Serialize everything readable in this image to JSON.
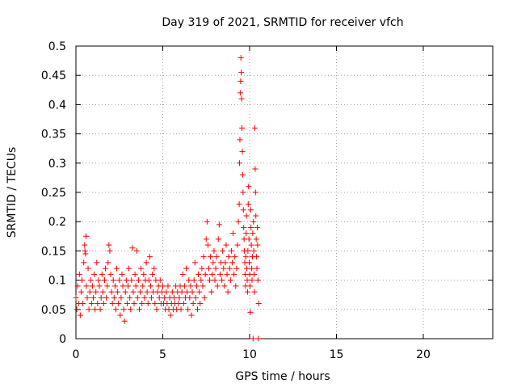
{
  "chart_data": {
    "type": "scatter",
    "title": "Day 319 of 2021, SRMTID for receiver vfch",
    "xlabel": "GPS time / hours",
    "ylabel": "SRMTID / TECUs",
    "xlim": [
      0,
      24
    ],
    "ylim": [
      0,
      0.5
    ],
    "xticks": [
      0,
      5,
      10,
      15,
      20
    ],
    "xtick_labels": [
      "0",
      "5",
      "10",
      "15",
      "20"
    ],
    "yticks": [
      0,
      0.05,
      0.1,
      0.15,
      0.2,
      0.25,
      0.3,
      0.35,
      0.4,
      0.45,
      0.5
    ],
    "ytick_labels": [
      "0",
      "0.05",
      "0.1",
      "0.15",
      "0.2",
      "0.25",
      "0.3",
      "0.35",
      "0.4",
      "0.45",
      "0.5"
    ],
    "grid": true,
    "marker": "+",
    "color": "#ff0000",
    "series": [
      {
        "name": "SRMTID",
        "points": [
          [
            0.0,
            0.07
          ],
          [
            0.05,
            0.05
          ],
          [
            0.1,
            0.09
          ],
          [
            0.15,
            0.06
          ],
          [
            0.2,
            0.11
          ],
          [
            0.25,
            0.04
          ],
          [
            0.3,
            0.08
          ],
          [
            0.35,
            0.1
          ],
          [
            0.4,
            0.06
          ],
          [
            0.45,
            0.13
          ],
          [
            0.5,
            0.16
          ],
          [
            0.52,
            0.15
          ],
          [
            0.55,
            0.145
          ],
          [
            0.58,
            0.175
          ],
          [
            0.6,
            0.09
          ],
          [
            0.65,
            0.07
          ],
          [
            0.7,
            0.12
          ],
          [
            0.75,
            0.05
          ],
          [
            0.8,
            0.08
          ],
          [
            0.85,
            0.1
          ],
          [
            0.9,
            0.06
          ],
          [
            0.95,
            0.09
          ],
          [
            1.0,
            0.07
          ],
          [
            1.05,
            0.11
          ],
          [
            1.1,
            0.05
          ],
          [
            1.15,
            0.08
          ],
          [
            1.2,
            0.13
          ],
          [
            1.25,
            0.06
          ],
          [
            1.3,
            0.1
          ],
          [
            1.35,
            0.09
          ],
          [
            1.4,
            0.05
          ],
          [
            1.45,
            0.07
          ],
          [
            1.5,
            0.11
          ],
          [
            1.55,
            0.08
          ],
          [
            1.6,
            0.06
          ],
          [
            1.65,
            0.1
          ],
          [
            1.7,
            0.12
          ],
          [
            1.75,
            0.07
          ],
          [
            1.8,
            0.09
          ],
          [
            1.85,
            0.13
          ],
          [
            1.9,
            0.16
          ],
          [
            1.95,
            0.15
          ],
          [
            2.0,
            0.11
          ],
          [
            2.05,
            0.08
          ],
          [
            2.1,
            0.06
          ],
          [
            2.15,
            0.1
          ],
          [
            2.2,
            0.07
          ],
          [
            2.25,
            0.09
          ],
          [
            2.3,
            0.05
          ],
          [
            2.35,
            0.12
          ],
          [
            2.4,
            0.08
          ],
          [
            2.45,
            0.06
          ],
          [
            2.5,
            0.1
          ],
          [
            2.55,
            0.04
          ],
          [
            2.6,
            0.07
          ],
          [
            2.65,
            0.11
          ],
          [
            2.7,
            0.09
          ],
          [
            2.75,
            0.05
          ],
          [
            2.8,
            0.03
          ],
          [
            2.85,
            0.08
          ],
          [
            2.9,
            0.1
          ],
          [
            2.95,
            0.06
          ],
          [
            3.0,
            0.09
          ],
          [
            3.05,
            0.12
          ],
          [
            3.1,
            0.07
          ],
          [
            3.15,
            0.05
          ],
          [
            3.2,
            0.1
          ],
          [
            3.25,
            0.155
          ],
          [
            3.3,
            0.08
          ],
          [
            3.35,
            0.06
          ],
          [
            3.4,
            0.11
          ],
          [
            3.45,
            0.09
          ],
          [
            3.5,
            0.15
          ],
          [
            3.55,
            0.07
          ],
          [
            3.6,
            0.1
          ],
          [
            3.65,
            0.05
          ],
          [
            3.7,
            0.08
          ],
          [
            3.75,
            0.12
          ],
          [
            3.8,
            0.06
          ],
          [
            3.85,
            0.09
          ],
          [
            3.9,
            0.11
          ],
          [
            3.95,
            0.07
          ],
          [
            4.0,
            0.1
          ],
          [
            4.05,
            0.13
          ],
          [
            4.1,
            0.08
          ],
          [
            4.15,
            0.06
          ],
          [
            4.2,
            0.1
          ],
          [
            4.25,
            0.14
          ],
          [
            4.3,
            0.09
          ],
          [
            4.35,
            0.07
          ],
          [
            4.4,
            0.11
          ],
          [
            4.45,
            0.08
          ],
          [
            4.5,
            0.12
          ],
          [
            4.55,
            0.06
          ],
          [
            4.6,
            0.1
          ],
          [
            4.65,
            0.05
          ],
          [
            4.7,
            0.08
          ],
          [
            4.75,
            0.09
          ],
          [
            4.8,
            0.07
          ],
          [
            4.85,
            0.1
          ],
          [
            4.9,
            0.06
          ],
          [
            4.95,
            0.08
          ],
          [
            5.0,
            0.09
          ],
          [
            5.05,
            0.06
          ],
          [
            5.1,
            0.07
          ],
          [
            5.15,
            0.05
          ],
          [
            5.2,
            0.08
          ],
          [
            5.25,
            0.06
          ],
          [
            5.3,
            0.09
          ],
          [
            5.35,
            0.05
          ],
          [
            5.4,
            0.07
          ],
          [
            5.45,
            0.04
          ],
          [
            5.5,
            0.06
          ],
          [
            5.55,
            0.08
          ],
          [
            5.6,
            0.05
          ],
          [
            5.65,
            0.07
          ],
          [
            5.7,
            0.06
          ],
          [
            5.75,
            0.09
          ],
          [
            5.8,
            0.05
          ],
          [
            5.85,
            0.08
          ],
          [
            5.9,
            0.06
          ],
          [
            5.95,
            0.07
          ],
          [
            6.0,
            0.09
          ],
          [
            6.05,
            0.05
          ],
          [
            6.1,
            0.08
          ],
          [
            6.15,
            0.11
          ],
          [
            6.2,
            0.06
          ],
          [
            6.25,
            0.09
          ],
          [
            6.3,
            0.07
          ],
          [
            6.35,
            0.12
          ],
          [
            6.4,
            0.08
          ],
          [
            6.45,
            0.05
          ],
          [
            6.5,
            0.1
          ],
          [
            6.55,
            0.07
          ],
          [
            6.6,
            0.09
          ],
          [
            6.65,
            0.04
          ],
          [
            6.7,
            0.08
          ],
          [
            6.75,
            0.06
          ],
          [
            6.8,
            0.1
          ],
          [
            6.85,
            0.13
          ],
          [
            6.9,
            0.07
          ],
          [
            6.95,
            0.09
          ],
          [
            7.0,
            0.05
          ],
          [
            7.05,
            0.11
          ],
          [
            7.1,
            0.08
          ],
          [
            7.15,
            0.06
          ],
          [
            7.2,
            0.1
          ],
          [
            7.25,
            0.12
          ],
          [
            7.3,
            0.09
          ],
          [
            7.35,
            0.14
          ],
          [
            7.4,
            0.07
          ],
          [
            7.45,
            0.11
          ],
          [
            7.5,
            0.17
          ],
          [
            7.55,
            0.2
          ],
          [
            7.6,
            0.16
          ],
          [
            7.65,
            0.12
          ],
          [
            7.7,
            0.1
          ],
          [
            7.75,
            0.14
          ],
          [
            7.8,
            0.08
          ],
          [
            7.85,
            0.11
          ],
          [
            7.9,
            0.13
          ],
          [
            7.95,
            0.15
          ],
          [
            8.0,
            0.1
          ],
          [
            8.05,
            0.12
          ],
          [
            8.1,
            0.14
          ],
          [
            8.15,
            0.09
          ],
          [
            8.2,
            0.17
          ],
          [
            8.25,
            0.195
          ],
          [
            8.3,
            0.11
          ],
          [
            8.35,
            0.13
          ],
          [
            8.4,
            0.1
          ],
          [
            8.45,
            0.15
          ],
          [
            8.5,
            0.12
          ],
          [
            8.55,
            0.09
          ],
          [
            8.6,
            0.13
          ],
          [
            8.65,
            0.16
          ],
          [
            8.7,
            0.11
          ],
          [
            8.75,
            0.08
          ],
          [
            8.8,
            0.14
          ],
          [
            8.85,
            0.12
          ],
          [
            8.9,
            0.1
          ],
          [
            8.95,
            0.15
          ],
          [
            9.0,
            0.13
          ],
          [
            9.05,
            0.18
          ],
          [
            9.1,
            0.11
          ],
          [
            9.15,
            0.14
          ],
          [
            9.2,
            0.09
          ],
          [
            9.25,
            0.12
          ],
          [
            9.3,
            0.16
          ],
          [
            9.35,
            0.2
          ],
          [
            9.4,
            0.23
          ],
          [
            9.42,
            0.3
          ],
          [
            9.44,
            0.34
          ],
          [
            9.46,
            0.42
          ],
          [
            9.48,
            0.44
          ],
          [
            9.5,
            0.48
          ],
          [
            9.52,
            0.455
          ],
          [
            9.54,
            0.41
          ],
          [
            9.56,
            0.36
          ],
          [
            9.58,
            0.32
          ],
          [
            9.6,
            0.28
          ],
          [
            9.62,
            0.25
          ],
          [
            9.64,
            0.22
          ],
          [
            9.66,
            0.19
          ],
          [
            9.68,
            0.17
          ],
          [
            9.7,
            0.15
          ],
          [
            9.72,
            0.13
          ],
          [
            9.74,
            0.11
          ],
          [
            9.76,
            0.09
          ],
          [
            9.78,
            0.14
          ],
          [
            9.8,
            0.18
          ],
          [
            9.82,
            0.21
          ],
          [
            9.84,
            0.12
          ],
          [
            9.86,
            0.1
          ],
          [
            9.88,
            0.08
          ],
          [
            9.9,
            0.15
          ],
          [
            9.92,
            0.23
          ],
          [
            9.94,
            0.26
          ],
          [
            9.96,
            0.17
          ],
          [
            9.98,
            0.13
          ],
          [
            10.0,
            0.11
          ],
          [
            10.02,
            0.09
          ],
          [
            10.04,
            0.045
          ],
          [
            10.06,
            0.22
          ],
          [
            10.08,
            0.19
          ],
          [
            10.1,
            0.16
          ],
          [
            10.12,
            0.12
          ],
          [
            10.14,
            0.1
          ],
          [
            10.16,
            0.14
          ],
          [
            10.18,
            0.18
          ],
          [
            10.2,
            0.0
          ],
          [
            10.22,
            0.2
          ],
          [
            10.24,
            0.15
          ],
          [
            10.26,
            0.11
          ],
          [
            10.28,
            0.08
          ],
          [
            10.3,
            0.36
          ],
          [
            10.32,
            0.29
          ],
          [
            10.34,
            0.25
          ],
          [
            10.36,
            0.21
          ],
          [
            10.38,
            0.17
          ],
          [
            10.4,
            0.14
          ],
          [
            10.42,
            0.12
          ],
          [
            10.44,
            0.19
          ],
          [
            10.46,
            0.16
          ],
          [
            10.48,
            0.1
          ],
          [
            10.5,
            0.0
          ],
          [
            10.52,
            0.06
          ]
        ]
      }
    ]
  }
}
